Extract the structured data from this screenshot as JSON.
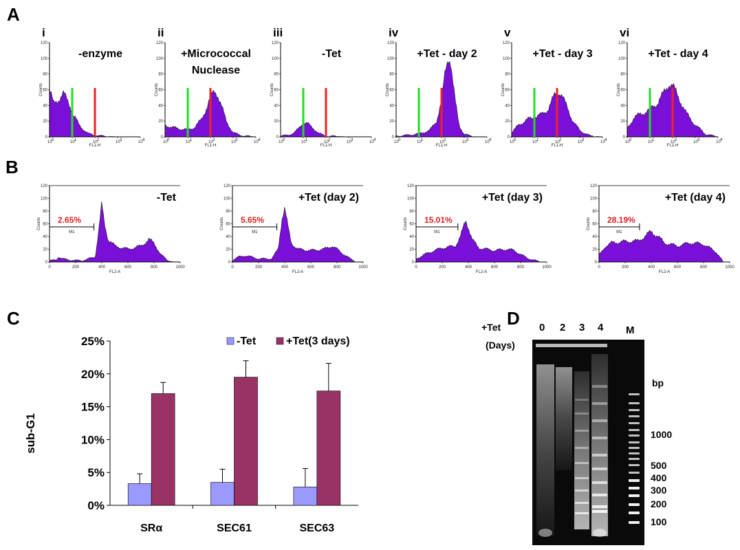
{
  "figure": {
    "panel_letters": [
      "A",
      "B",
      "C",
      "D"
    ]
  },
  "colors": {
    "histogram_fill": "#7a10d8",
    "histogram_edge": "#111111",
    "marker_green": "#22dd22",
    "marker_red": "#ee2222",
    "bar_minus_tet": "#9999ff",
    "bar_plus_tet": "#993366",
    "percent_red": "#e02020"
  },
  "chart_data": [
    {
      "panel": "A",
      "type": "area",
      "xlabel": "FL1-H",
      "ylabel": "Counts",
      "x_scale": "log",
      "xlim": [
        1,
        10000
      ],
      "ylim": [
        0,
        120
      ],
      "x_ticks": [
        "10",
        "10",
        "10",
        "10",
        "10"
      ],
      "x_tick_exponents": [
        "0",
        "1",
        "2",
        "3",
        "4"
      ],
      "y_ticks": [
        "0",
        "20",
        "40",
        "60",
        "80",
        "100",
        "120"
      ],
      "marker_lines": [
        {
          "color": "green",
          "x": 10
        },
        {
          "color": "red",
          "x": 100
        }
      ],
      "histograms": [
        {
          "label": "i",
          "title_lines": [
            "-enzyme"
          ],
          "x": [
            1,
            1.5,
            2,
            3,
            4,
            6,
            8,
            10,
            15,
            20,
            30,
            50,
            100,
            200,
            1000,
            10000
          ],
          "counts": [
            60,
            42,
            45,
            50,
            55,
            47,
            40,
            30,
            22,
            15,
            10,
            4,
            2,
            1,
            0,
            0
          ]
        },
        {
          "label": "ii",
          "title_lines": [
            "+Micrococcal",
            "Nuclease"
          ],
          "x": [
            1,
            2,
            5,
            10,
            20,
            40,
            70,
            100,
            150,
            200,
            300,
            500,
            1000,
            3000,
            10000
          ],
          "counts": [
            15,
            12,
            10,
            9,
            12,
            22,
            38,
            50,
            58,
            55,
            40,
            20,
            5,
            1,
            0
          ]
        },
        {
          "label": "iii",
          "title_lines": [
            "-Tet"
          ],
          "x": [
            1,
            2,
            4,
            6,
            8,
            10,
            15,
            20,
            30,
            50,
            100,
            1000,
            10000
          ],
          "counts": [
            1,
            2,
            5,
            10,
            15,
            18,
            17,
            14,
            10,
            4,
            1,
            0,
            0
          ]
        },
        {
          "label": "iv",
          "title_lines": [
            "+Tet - day 2"
          ],
          "x": [
            1,
            3,
            10,
            30,
            60,
            100,
            150,
            200,
            250,
            300,
            400,
            600,
            1000,
            3000,
            10000
          ],
          "counts": [
            1,
            2,
            4,
            8,
            20,
            45,
            85,
            103,
            98,
            75,
            45,
            15,
            3,
            0,
            0
          ]
        },
        {
          "label": "v",
          "title_lines": [
            "+Tet - day 3"
          ],
          "x": [
            1,
            2,
            5,
            10,
            20,
            40,
            70,
            100,
            150,
            300,
            500,
            1000,
            3000,
            10000
          ],
          "counts": [
            5,
            15,
            22,
            25,
            28,
            35,
            50,
            58,
            55,
            35,
            20,
            8,
            1,
            0
          ]
        },
        {
          "label": "vi",
          "title_lines": [
            "+Tet - day 4"
          ],
          "x": [
            1,
            2,
            5,
            10,
            20,
            40,
            70,
            100,
            150,
            200,
            400,
            1000,
            3000,
            10000
          ],
          "counts": [
            10,
            25,
            30,
            35,
            42,
            55,
            68,
            65,
            55,
            48,
            30,
            15,
            3,
            0
          ]
        }
      ]
    },
    {
      "panel": "B",
      "type": "area",
      "xlabel": "FL2-A",
      "ylabel": "Counts",
      "xlim": [
        0,
        1000
      ],
      "ylim": [
        0,
        120
      ],
      "x_ticks": [
        "0",
        "200",
        "400",
        "600",
        "800",
        "1000"
      ],
      "y_ticks": [
        "0",
        "20",
        "40",
        "60",
        "80",
        "100",
        "120"
      ],
      "gate_label": "M1",
      "histograms": [
        {
          "title": "-Tet",
          "gate_percent": "2.65%",
          "gate_range": [
            0,
            340
          ],
          "x": [
            0,
            50,
            70,
            100,
            150,
            250,
            350,
            380,
            400,
            420,
            450,
            500,
            600,
            700,
            760,
            800,
            850,
            900,
            950
          ],
          "counts": [
            2,
            3,
            8,
            5,
            3,
            2,
            8,
            55,
            90,
            60,
            35,
            25,
            20,
            25,
            35,
            30,
            12,
            3,
            0
          ]
        },
        {
          "title": "+Tet (day 2)",
          "gate_percent": "5.65%",
          "gate_range": [
            0,
            340
          ],
          "x": [
            0,
            50,
            100,
            200,
            300,
            350,
            380,
            400,
            420,
            450,
            500,
            600,
            700,
            760,
            800,
            900,
            950
          ],
          "counts": [
            3,
            8,
            10,
            5,
            5,
            20,
            70,
            85,
            60,
            30,
            20,
            18,
            20,
            25,
            20,
            5,
            0
          ]
        },
        {
          "title": "+Tet (day 3)",
          "gate_percent": "15.01%",
          "gate_range": [
            0,
            320
          ],
          "x": [
            0,
            50,
            100,
            200,
            300,
            340,
            380,
            400,
            430,
            480,
            600,
            700,
            750,
            850,
            950
          ],
          "counts": [
            5,
            10,
            15,
            22,
            25,
            40,
            65,
            55,
            35,
            22,
            18,
            20,
            18,
            6,
            0
          ]
        },
        {
          "title": "+Tet (day 4)",
          "gate_percent": "28.19%",
          "gate_range": [
            0,
            310
          ],
          "x": [
            0,
            50,
            100,
            200,
            300,
            350,
            400,
            450,
            500,
            600,
            700,
            800,
            900,
            950
          ],
          "counts": [
            10,
            25,
            30,
            32,
            33,
            40,
            48,
            40,
            30,
            25,
            30,
            28,
            15,
            0
          ]
        }
      ]
    },
    {
      "panel": "C",
      "type": "bar",
      "categories": [
        "SRα",
        "SEC61",
        "SEC63"
      ],
      "ylabel": "sub-G1",
      "ylim": [
        0,
        25
      ],
      "y_ticks": [
        "0%",
        "5%",
        "10%",
        "15%",
        "20%",
        "25%"
      ],
      "series": [
        {
          "name": "-Tet",
          "values": [
            3.3,
            3.5,
            2.8
          ],
          "errors": [
            1.5,
            2.0,
            2.8
          ]
        },
        {
          "name": "+Tet(3 days)",
          "values": [
            17.0,
            19.5,
            17.4
          ],
          "errors": [
            1.7,
            2.5,
            4.2
          ]
        }
      ]
    }
  ],
  "gel": {
    "row_label_1": "+Tet",
    "row_label_2": "(Days)",
    "lanes": [
      "0",
      "2",
      "3",
      "4",
      "M"
    ],
    "size_unit": "bp",
    "markers": [
      "1000",
      "500",
      "400",
      "300",
      "200",
      "100"
    ]
  }
}
